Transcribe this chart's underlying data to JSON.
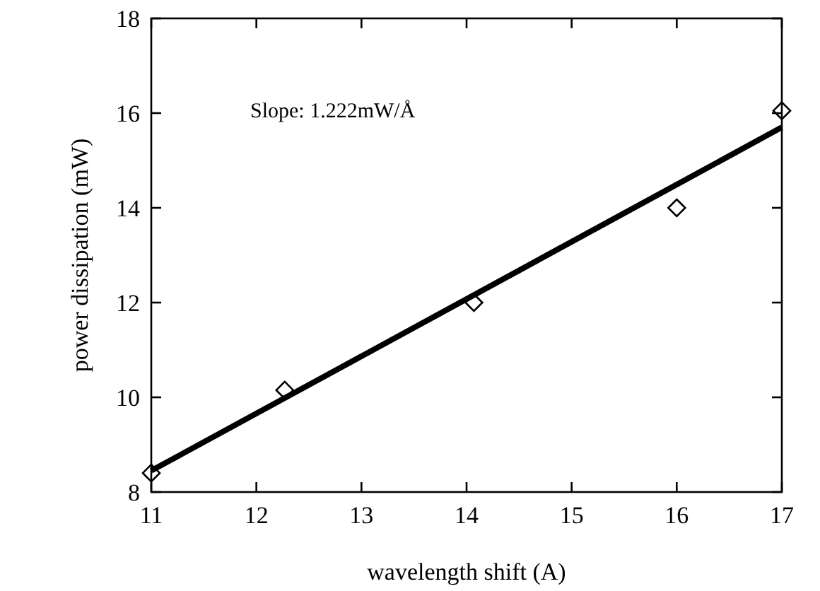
{
  "chart_data": {
    "type": "scatter",
    "xlabel": "wavelength shift (A)",
    "ylabel": "power dissipation (mW)",
    "annotations": [
      "Slope: 1.222mW/Å"
    ],
    "xlim": [
      11,
      17
    ],
    "xticks": [
      11,
      12,
      13,
      14,
      15,
      16,
      17
    ],
    "ylim": [
      8,
      18
    ],
    "yticks": [
      8,
      10,
      12,
      14,
      16,
      18
    ],
    "grid": false,
    "series": [
      {
        "color": "#000000",
        "marker": "diamond",
        "x": [
          11,
          12.27,
          14.07,
          16,
          17
        ],
        "values": [
          8.4,
          10.15,
          12.0,
          14.0,
          16.05
        ]
      },
      {
        "type": "line",
        "color": "#000000",
        "marker": "none",
        "line_style": "solid",
        "x": [
          11,
          17
        ],
        "values": [
          8.45,
          15.7
        ]
      }
    ]
  }
}
